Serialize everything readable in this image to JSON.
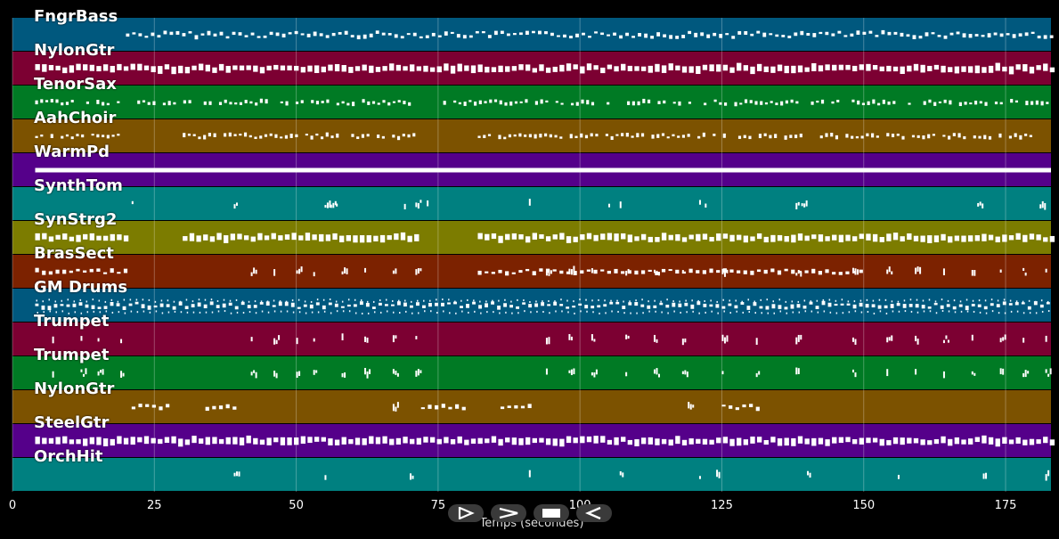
{
  "chart_data": {
    "type": "piano-roll",
    "xlabel": "Temps (secondes)",
    "xlim": [
      0,
      183
    ],
    "xticks": [
      0,
      25,
      50,
      75,
      100,
      125,
      150,
      175
    ],
    "grid": true,
    "tracks": [
      {
        "name": "FngrBass",
        "color": "#00587e",
        "segments": [
          [
            20,
            183
          ]
        ],
        "style": "dense-line"
      },
      {
        "name": "NylonGtr",
        "color": "#7c0032",
        "segments": [
          [
            4,
            183
          ]
        ],
        "style": "blocks"
      },
      {
        "name": "TenorSax",
        "color": "#007a24",
        "segments": [
          [
            4,
            20
          ],
          [
            22,
            70
          ],
          [
            75,
            183
          ]
        ],
        "style": "phrases"
      },
      {
        "name": "AahChoir",
        "color": "#7c5200",
        "segments": [
          [
            4,
            19
          ],
          [
            30,
            71
          ],
          [
            82,
            180
          ]
        ],
        "style": "phrases"
      },
      {
        "name": "WarmPd",
        "color": "#55008a",
        "segments": [
          [
            4,
            183
          ]
        ],
        "style": "solid"
      },
      {
        "name": "SynthTom",
        "color": "#008080",
        "events": [
          21,
          39,
          55,
          56,
          57,
          69,
          71,
          73,
          91,
          105,
          107,
          121,
          122,
          138,
          139,
          170,
          181
        ]
      },
      {
        "name": "SynStrg2",
        "color": "#7c7c00",
        "segments": [
          [
            4,
            20
          ],
          [
            30,
            72
          ],
          [
            82,
            183
          ]
        ],
        "style": "blocks"
      },
      {
        "name": "BrasSect",
        "color": "#7c2200",
        "segments": [
          [
            4,
            20
          ],
          [
            82,
            150
          ]
        ],
        "events": [
          42,
          46,
          50,
          53,
          58,
          62,
          67,
          71,
          94,
          98,
          102,
          108,
          113,
          118,
          125,
          138,
          148,
          154,
          159,
          164,
          169,
          174,
          178,
          182
        ]
      },
      {
        "name": "GM Drums",
        "color": "#00587e",
        "segments": [
          [
            4,
            183
          ]
        ],
        "style": "dense-line"
      },
      {
        "name": "Trumpet",
        "color": "#7c0032",
        "events": [
          7,
          12,
          15,
          19,
          42,
          46,
          50,
          53,
          58,
          62,
          67,
          71,
          94,
          98,
          102,
          108,
          113,
          118,
          125,
          131,
          138,
          148,
          154,
          159,
          164,
          169,
          174,
          178,
          182
        ]
      },
      {
        "name": "Trumpet",
        "color": "#007a24",
        "events": [
          7,
          12,
          15,
          19,
          42,
          46,
          50,
          53,
          58,
          62,
          67,
          71,
          94,
          98,
          102,
          108,
          113,
          118,
          125,
          131,
          138,
          148,
          154,
          159,
          164,
          169,
          174,
          178,
          182
        ]
      },
      {
        "name": "NylonGtr",
        "color": "#7c5200",
        "segments": [
          [
            21,
            28
          ],
          [
            34,
            40
          ],
          [
            72,
            80
          ],
          [
            86,
            91
          ],
          [
            125,
            131
          ]
        ],
        "events": [
          67,
          119
        ]
      },
      {
        "name": "SteelGtr",
        "color": "#55008a",
        "segments": [
          [
            4,
            183
          ]
        ],
        "style": "blocks"
      },
      {
        "name": "OrchHit",
        "color": "#008080",
        "events": [
          39,
          55,
          70,
          91,
          107,
          121,
          124,
          140,
          156,
          171,
          182
        ]
      }
    ]
  },
  "controls": [
    {
      "name": "play-button",
      "icon": "play-icon"
    },
    {
      "name": "forward-button",
      "icon": "chevron-right-icon"
    },
    {
      "name": "stop-button",
      "icon": "stop-icon"
    },
    {
      "name": "rewind-button",
      "icon": "rewind-icon"
    }
  ]
}
